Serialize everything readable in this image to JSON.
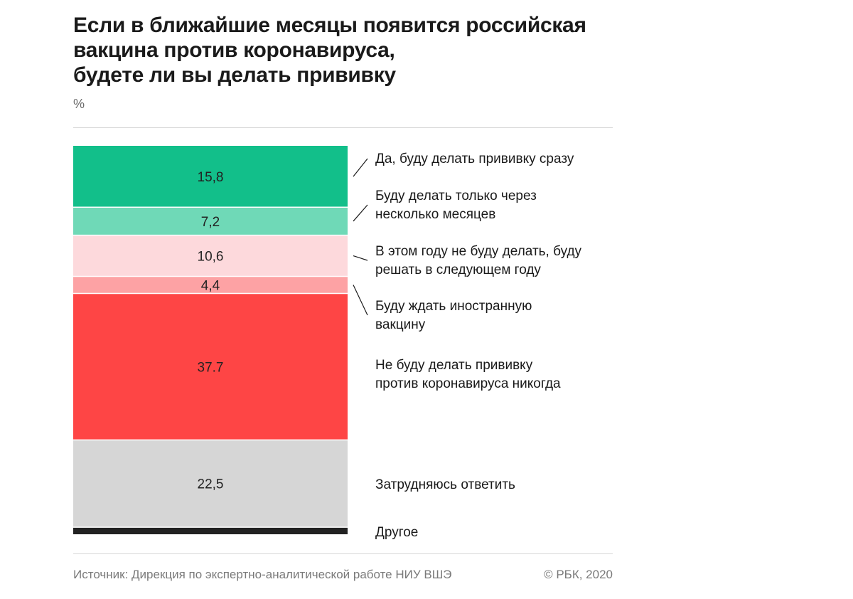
{
  "chart_data": {
    "type": "bar",
    "title_lines": [
      "Если в ближайшие месяцы появится российская",
      "вакцина против коронавируса,",
      "будете ли вы делать прививку"
    ],
    "unit": "%",
    "stacked": true,
    "series": [
      {
        "label_lines": [
          "Да, буду делать прививку сразу"
        ],
        "value": 15.8,
        "display": "15,8",
        "color": "#12bf8a"
      },
      {
        "label_lines": [
          "Буду делать только через",
          "несколько месяцев"
        ],
        "value": 7.2,
        "display": "7,2",
        "color": "#6fd9b7"
      },
      {
        "label_lines": [
          "В этом году не буду делать, буду",
          "решать в следующем году"
        ],
        "value": 10.6,
        "display": "10,6",
        "color": "#fdd9dc"
      },
      {
        "label_lines": [
          "Буду ждать иностранную",
          "вакцину"
        ],
        "value": 4.4,
        "display": "4,4",
        "color": "#fda2a4"
      },
      {
        "label_lines": [
          "Не буду делать прививку",
          "против коронавируса никогда"
        ],
        "value": 37.7,
        "display": "37.7",
        "color": "#fe4545"
      },
      {
        "label_lines": [
          "Затрудняюсь ответить"
        ],
        "value": 22.5,
        "display": "22,5",
        "color": "#d6d6d6"
      },
      {
        "label_lines": [
          "Другое"
        ],
        "value": 1.8,
        "display": "",
        "color": "#222222"
      }
    ]
  },
  "footer": {
    "source": "Источник: Дирекция по экспертно-аналитической работе НИУ ВШЭ",
    "copyright": "© РБК, 2020"
  }
}
